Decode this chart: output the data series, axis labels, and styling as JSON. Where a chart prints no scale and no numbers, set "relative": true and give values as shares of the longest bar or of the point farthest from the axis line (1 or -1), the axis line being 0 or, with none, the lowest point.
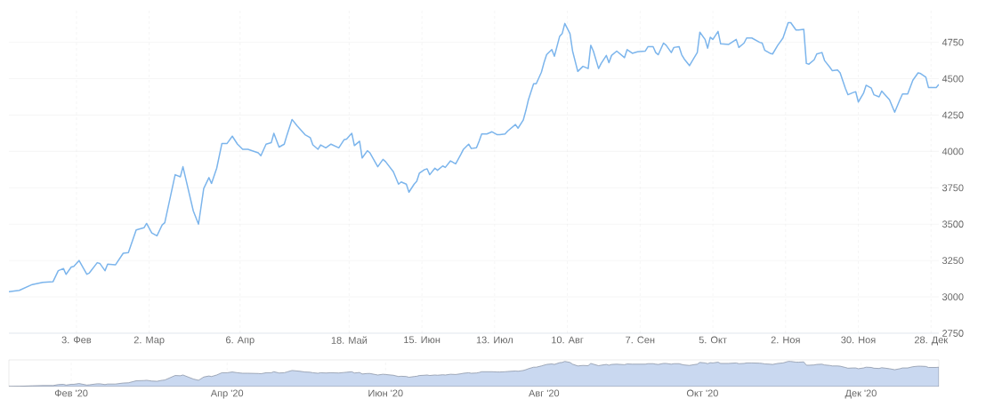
{
  "chart_data": [
    {
      "type": "line",
      "grid": true,
      "xlim": [
        "2020-01-08",
        "2020-12-31"
      ],
      "xticks": [
        {
          "value": "2020-02-03",
          "label": "3. Фев"
        },
        {
          "value": "2020-03-02",
          "label": "2. Мар"
        },
        {
          "value": "2020-04-06",
          "label": "6. Апр"
        },
        {
          "value": "2020-05-18",
          "label": "18. Май"
        },
        {
          "value": "2020-06-15",
          "label": "15. Июн"
        },
        {
          "value": "2020-07-13",
          "label": "13. Июл"
        },
        {
          "value": "2020-08-10",
          "label": "10. Авг"
        },
        {
          "value": "2020-09-07",
          "label": "7. Сен"
        },
        {
          "value": "2020-10-05",
          "label": "5. Окт"
        },
        {
          "value": "2020-11-02",
          "label": "2. Ноя"
        },
        {
          "value": "2020-11-30",
          "label": "30. Ноя"
        },
        {
          "value": "2020-12-28",
          "label": "28. Дек"
        }
      ],
      "ylim": [
        2750,
        4980
      ],
      "yticks": [
        2750,
        3000,
        3250,
        3500,
        3750,
        4000,
        4250,
        4500,
        4750
      ],
      "x": [
        "2020-01-08",
        "2020-01-12",
        "2020-01-17",
        "2020-01-21",
        "2020-01-25",
        "2020-01-27",
        "2020-01-29",
        "2020-01-30",
        "2020-02-01",
        "2020-02-02",
        "2020-02-04",
        "2020-02-07",
        "2020-02-08",
        "2020-02-11",
        "2020-02-12",
        "2020-02-14",
        "2020-02-15",
        "2020-02-18",
        "2020-02-21",
        "2020-02-23",
        "2020-02-26",
        "2020-02-29",
        "2020-03-01",
        "2020-03-03",
        "2020-03-05",
        "2020-03-07",
        "2020-03-08",
        "2020-03-12",
        "2020-03-14",
        "2020-03-15",
        "2020-03-19",
        "2020-03-21",
        "2020-03-23",
        "2020-03-25",
        "2020-03-26",
        "2020-03-28",
        "2020-03-30",
        "2020-04-01",
        "2020-04-03",
        "2020-04-05",
        "2020-04-07",
        "2020-04-09",
        "2020-04-13",
        "2020-04-14",
        "2020-04-16",
        "2020-04-18",
        "2020-04-19",
        "2020-04-21",
        "2020-04-23",
        "2020-04-24",
        "2020-04-26",
        "2020-04-28",
        "2020-04-29",
        "2020-05-01",
        "2020-05-03",
        "2020-05-04",
        "2020-05-06",
        "2020-05-07",
        "2020-05-09",
        "2020-05-11",
        "2020-05-14",
        "2020-05-16",
        "2020-05-17",
        "2020-05-19",
        "2020-05-20",
        "2020-05-22",
        "2020-05-23",
        "2020-05-25",
        "2020-05-26",
        "2020-05-29",
        "2020-05-31",
        "2020-06-01",
        "2020-06-04",
        "2020-06-06",
        "2020-06-07",
        "2020-06-09",
        "2020-06-10",
        "2020-06-12",
        "2020-06-13",
        "2020-06-14",
        "2020-06-16",
        "2020-06-17",
        "2020-06-18",
        "2020-06-20",
        "2020-06-21",
        "2020-06-23",
        "2020-06-24",
        "2020-06-26",
        "2020-06-28",
        "2020-06-30",
        "2020-07-01",
        "2020-07-03",
        "2020-07-04",
        "2020-07-06",
        "2020-07-07",
        "2020-07-08",
        "2020-07-10",
        "2020-07-12",
        "2020-07-14",
        "2020-07-15",
        "2020-07-17",
        "2020-07-18",
        "2020-07-21",
        "2020-07-22",
        "2020-07-24",
        "2020-07-25",
        "2020-07-26",
        "2020-07-28",
        "2020-07-29",
        "2020-07-31",
        "2020-08-01",
        "2020-08-02",
        "2020-08-04",
        "2020-08-05",
        "2020-08-07",
        "2020-08-08",
        "2020-08-09",
        "2020-08-11",
        "2020-08-12",
        "2020-08-14",
        "2020-08-16",
        "2020-08-18",
        "2020-08-19",
        "2020-08-20",
        "2020-08-22",
        "2020-08-23",
        "2020-08-25",
        "2020-08-26",
        "2020-08-27",
        "2020-08-29",
        "2020-09-01",
        "2020-09-02",
        "2020-09-04",
        "2020-09-06",
        "2020-09-09",
        "2020-09-10",
        "2020-09-12",
        "2020-09-13",
        "2020-09-14",
        "2020-09-16",
        "2020-09-17",
        "2020-09-19",
        "2020-09-20",
        "2020-09-22",
        "2020-09-23",
        "2020-09-24",
        "2020-09-26",
        "2020-09-27",
        "2020-09-29",
        "2020-09-30",
        "2020-10-02",
        "2020-10-03",
        "2020-10-04",
        "2020-10-05",
        "2020-10-07",
        "2020-10-08",
        "2020-10-11",
        "2020-10-14",
        "2020-10-15",
        "2020-10-17",
        "2020-10-18",
        "2020-10-20",
        "2020-10-23",
        "2020-10-24",
        "2020-10-25",
        "2020-10-27",
        "2020-10-28",
        "2020-10-30",
        "2020-10-31",
        "2020-11-01",
        "2020-11-03",
        "2020-11-04",
        "2020-11-06",
        "2020-11-07",
        "2020-11-09",
        "2020-11-10",
        "2020-11-11",
        "2020-11-13",
        "2020-11-14",
        "2020-11-16",
        "2020-11-17",
        "2020-11-19",
        "2020-11-20",
        "2020-11-22",
        "2020-11-23",
        "2020-11-25",
        "2020-11-26",
        "2020-11-28",
        "2020-11-29",
        "2020-11-30",
        "2020-12-02",
        "2020-12-03",
        "2020-12-05",
        "2020-12-06",
        "2020-12-08",
        "2020-12-09",
        "2020-12-12",
        "2020-12-14",
        "2020-12-16",
        "2020-12-17",
        "2020-12-19",
        "2020-12-21",
        "2020-12-23",
        "2020-12-24",
        "2020-12-26",
        "2020-12-27",
        "2020-12-30",
        "2020-12-31"
      ],
      "series": [
        {
          "color": "#7cb5ec",
          "values": [
            3035,
            3045,
            3085,
            3100,
            3105,
            3180,
            3195,
            3155,
            3205,
            3210,
            3250,
            3155,
            3165,
            3235,
            3230,
            3180,
            3225,
            3220,
            3300,
            3305,
            3460,
            3475,
            3505,
            3440,
            3420,
            3495,
            3510,
            3840,
            3825,
            3895,
            3590,
            3500,
            3745,
            3820,
            3780,
            3885,
            4055,
            4055,
            4105,
            4050,
            4015,
            4015,
            3990,
            3970,
            4050,
            4060,
            4125,
            4030,
            4050,
            4110,
            4220,
            4175,
            4155,
            4115,
            4095,
            4045,
            4015,
            4045,
            4025,
            4050,
            4025,
            4080,
            4085,
            4125,
            4040,
            4070,
            3955,
            4005,
            3990,
            3895,
            3945,
            3930,
            3860,
            3775,
            3790,
            3775,
            3720,
            3775,
            3795,
            3850,
            3875,
            3880,
            3840,
            3885,
            3870,
            3900,
            3890,
            3935,
            3915,
            3980,
            4015,
            4050,
            4020,
            4025,
            4070,
            4120,
            4120,
            4135,
            4115,
            4115,
            4120,
            4140,
            4185,
            4160,
            4215,
            4280,
            4355,
            4465,
            4465,
            4545,
            4610,
            4665,
            4700,
            4655,
            4790,
            4810,
            4880,
            4810,
            4690,
            4550,
            4585,
            4570,
            4730,
            4690,
            4570,
            4605,
            4660,
            4610,
            4660,
            4690,
            4645,
            4700,
            4675,
            4685,
            4690,
            4720,
            4720,
            4680,
            4665,
            4745,
            4730,
            4680,
            4715,
            4720,
            4665,
            4635,
            4590,
            4620,
            4680,
            4820,
            4770,
            4710,
            4785,
            4770,
            4825,
            4740,
            4735,
            4770,
            4715,
            4745,
            4780,
            4780,
            4750,
            4745,
            4695,
            4675,
            4670,
            4730,
            4755,
            4780,
            4885,
            4885,
            4835,
            4835,
            4840,
            4605,
            4600,
            4630,
            4670,
            4680,
            4625,
            4580,
            4555,
            4560,
            4540,
            4435,
            4390,
            4405,
            4410,
            4340,
            4400,
            4455,
            4435,
            4390,
            4375,
            4415,
            4355,
            4270,
            4355,
            4395,
            4395,
            4490,
            4540,
            4535,
            4510,
            4440,
            4440,
            4460
          ]
        }
      ]
    },
    {
      "type": "area",
      "grid": "x",
      "tick_labels": "x",
      "xlim": [
        "2020-01-08",
        "2020-12-31"
      ],
      "xticks": [
        {
          "value": "2020-02-01",
          "label": "Фев '20"
        },
        {
          "value": "2020-04-01",
          "label": "Апр '20"
        },
        {
          "value": "2020-06-01",
          "label": "Июн '20"
        },
        {
          "value": "2020-08-01",
          "label": "Авг '20"
        },
        {
          "value": "2020-10-01",
          "label": "Окт '20"
        },
        {
          "value": "2020-12-01",
          "label": "Дек '20"
        }
      ],
      "relative": true,
      "x": [
        "2020-01-08",
        "2020-01-12",
        "2020-01-17",
        "2020-01-21",
        "2020-01-25",
        "2020-01-27",
        "2020-01-29",
        "2020-01-30",
        "2020-02-01",
        "2020-02-02",
        "2020-02-04",
        "2020-02-07",
        "2020-02-08",
        "2020-02-11",
        "2020-02-12",
        "2020-02-14",
        "2020-02-15",
        "2020-02-18",
        "2020-02-21",
        "2020-02-23",
        "2020-02-26",
        "2020-02-29",
        "2020-03-01",
        "2020-03-03",
        "2020-03-05",
        "2020-03-07",
        "2020-03-08",
        "2020-03-12",
        "2020-03-14",
        "2020-03-15",
        "2020-03-19",
        "2020-03-21",
        "2020-03-23",
        "2020-03-25",
        "2020-03-26",
        "2020-03-28",
        "2020-03-30",
        "2020-04-01",
        "2020-04-03",
        "2020-04-05",
        "2020-04-07",
        "2020-04-09",
        "2020-04-13",
        "2020-04-14",
        "2020-04-16",
        "2020-04-18",
        "2020-04-19",
        "2020-04-21",
        "2020-04-23",
        "2020-04-24",
        "2020-04-26",
        "2020-04-28",
        "2020-04-29",
        "2020-05-01",
        "2020-05-03",
        "2020-05-04",
        "2020-05-06",
        "2020-05-07",
        "2020-05-09",
        "2020-05-11",
        "2020-05-14",
        "2020-05-16",
        "2020-05-17",
        "2020-05-19",
        "2020-05-20",
        "2020-05-22",
        "2020-05-23",
        "2020-05-25",
        "2020-05-26",
        "2020-05-29",
        "2020-05-31",
        "2020-06-01",
        "2020-06-04",
        "2020-06-06",
        "2020-06-07",
        "2020-06-09",
        "2020-06-10",
        "2020-06-12",
        "2020-06-13",
        "2020-06-14",
        "2020-06-16",
        "2020-06-17",
        "2020-06-18",
        "2020-06-20",
        "2020-06-21",
        "2020-06-23",
        "2020-06-24",
        "2020-06-26",
        "2020-06-28",
        "2020-06-30",
        "2020-07-01",
        "2020-07-03",
        "2020-07-04",
        "2020-07-06",
        "2020-07-07",
        "2020-07-08",
        "2020-07-10",
        "2020-07-12",
        "2020-07-14",
        "2020-07-15",
        "2020-07-17",
        "2020-07-18",
        "2020-07-21",
        "2020-07-22",
        "2020-07-24",
        "2020-07-25",
        "2020-07-26",
        "2020-07-28",
        "2020-07-29",
        "2020-07-31",
        "2020-08-01",
        "2020-08-02",
        "2020-08-04",
        "2020-08-05",
        "2020-08-07",
        "2020-08-08",
        "2020-08-09",
        "2020-08-11",
        "2020-08-12",
        "2020-08-14",
        "2020-08-16",
        "2020-08-18",
        "2020-08-19",
        "2020-08-20",
        "2020-08-22",
        "2020-08-23",
        "2020-08-25",
        "2020-08-26",
        "2020-08-27",
        "2020-08-29",
        "2020-09-01",
        "2020-09-02",
        "2020-09-04",
        "2020-09-06",
        "2020-09-09",
        "2020-09-10",
        "2020-09-12",
        "2020-09-13",
        "2020-09-14",
        "2020-09-16",
        "2020-09-17",
        "2020-09-19",
        "2020-09-20",
        "2020-09-22",
        "2020-09-23",
        "2020-09-24",
        "2020-09-26",
        "2020-09-27",
        "2020-09-29",
        "2020-09-30",
        "2020-10-02",
        "2020-10-03",
        "2020-10-04",
        "2020-10-05",
        "2020-10-07",
        "2020-10-08",
        "2020-10-11",
        "2020-10-14",
        "2020-10-15",
        "2020-10-17",
        "2020-10-18",
        "2020-10-20",
        "2020-10-23",
        "2020-10-24",
        "2020-10-25",
        "2020-10-27",
        "2020-10-28",
        "2020-10-30",
        "2020-10-31",
        "2020-11-01",
        "2020-11-03",
        "2020-11-04",
        "2020-11-06",
        "2020-11-07",
        "2020-11-09",
        "2020-11-10",
        "2020-11-11",
        "2020-11-13",
        "2020-11-14",
        "2020-11-16",
        "2020-11-17",
        "2020-11-19",
        "2020-11-20",
        "2020-11-22",
        "2020-11-23",
        "2020-11-25",
        "2020-11-26",
        "2020-11-28",
        "2020-11-29",
        "2020-11-30",
        "2020-12-02",
        "2020-12-03",
        "2020-12-05",
        "2020-12-06",
        "2020-12-08",
        "2020-12-09",
        "2020-12-12",
        "2020-12-14",
        "2020-12-16",
        "2020-12-17",
        "2020-12-19",
        "2020-12-21",
        "2020-12-23",
        "2020-12-24",
        "2020-12-26",
        "2020-12-27",
        "2020-12-30",
        "2020-12-31"
      ],
      "series": [
        {
          "color": "#c9d8f0",
          "values": [
            0,
            0.01,
            0.03,
            0.04,
            0.04,
            0.08,
            0.09,
            0.06,
            0.09,
            0.09,
            0.12,
            0.06,
            0.07,
            0.11,
            0.11,
            0.08,
            0.1,
            0.1,
            0.14,
            0.15,
            0.23,
            0.24,
            0.25,
            0.22,
            0.21,
            0.25,
            0.26,
            0.44,
            0.43,
            0.46,
            0.3,
            0.25,
            0.38,
            0.42,
            0.4,
            0.46,
            0.55,
            0.55,
            0.58,
            0.55,
            0.53,
            0.53,
            0.52,
            0.51,
            0.55,
            0.55,
            0.59,
            0.54,
            0.55,
            0.58,
            0.64,
            0.62,
            0.61,
            0.58,
            0.57,
            0.55,
            0.53,
            0.55,
            0.54,
            0.55,
            0.54,
            0.56,
            0.57,
            0.59,
            0.54,
            0.56,
            0.5,
            0.52,
            0.52,
            0.46,
            0.49,
            0.48,
            0.45,
            0.4,
            0.41,
            0.4,
            0.37,
            0.4,
            0.41,
            0.44,
            0.45,
            0.46,
            0.44,
            0.46,
            0.45,
            0.47,
            0.46,
            0.49,
            0.48,
            0.51,
            0.53,
            0.55,
            0.53,
            0.54,
            0.56,
            0.59,
            0.59,
            0.59,
            0.58,
            0.58,
            0.59,
            0.6,
            0.62,
            0.61,
            0.64,
            0.67,
            0.71,
            0.77,
            0.77,
            0.82,
            0.85,
            0.88,
            0.9,
            0.88,
            0.95,
            0.96,
            1.0,
            0.96,
            0.89,
            0.82,
            0.84,
            0.83,
            0.92,
            0.89,
            0.83,
            0.85,
            0.88,
            0.85,
            0.88,
            0.89,
            0.87,
            0.9,
            0.89,
            0.89,
            0.89,
            0.91,
            0.91,
            0.89,
            0.88,
            0.92,
            0.92,
            0.89,
            0.91,
            0.91,
            0.88,
            0.86,
            0.84,
            0.86,
            0.89,
            0.96,
            0.94,
            0.91,
            0.95,
            0.94,
            0.97,
            0.92,
            0.92,
            0.94,
            0.91,
            0.92,
            0.94,
            0.94,
            0.93,
            0.92,
            0.9,
            0.89,
            0.88,
            0.92,
            0.93,
            0.94,
            1,
            1,
            0.97,
            0.97,
            0.98,
            0.85,
            0.85,
            0.86,
            0.88,
            0.89,
            0.86,
            0.84,
            0.82,
            0.82,
            0.81,
            0.76,
            0.73,
            0.74,
            0.74,
            0.71,
            0.74,
            0.77,
            0.76,
            0.73,
            0.72,
            0.75,
            0.71,
            0.67,
            0.71,
            0.74,
            0.74,
            0.79,
            0.81,
            0.81,
            0.8,
            0.76,
            0.76,
            0.77
          ]
        }
      ]
    }
  ]
}
